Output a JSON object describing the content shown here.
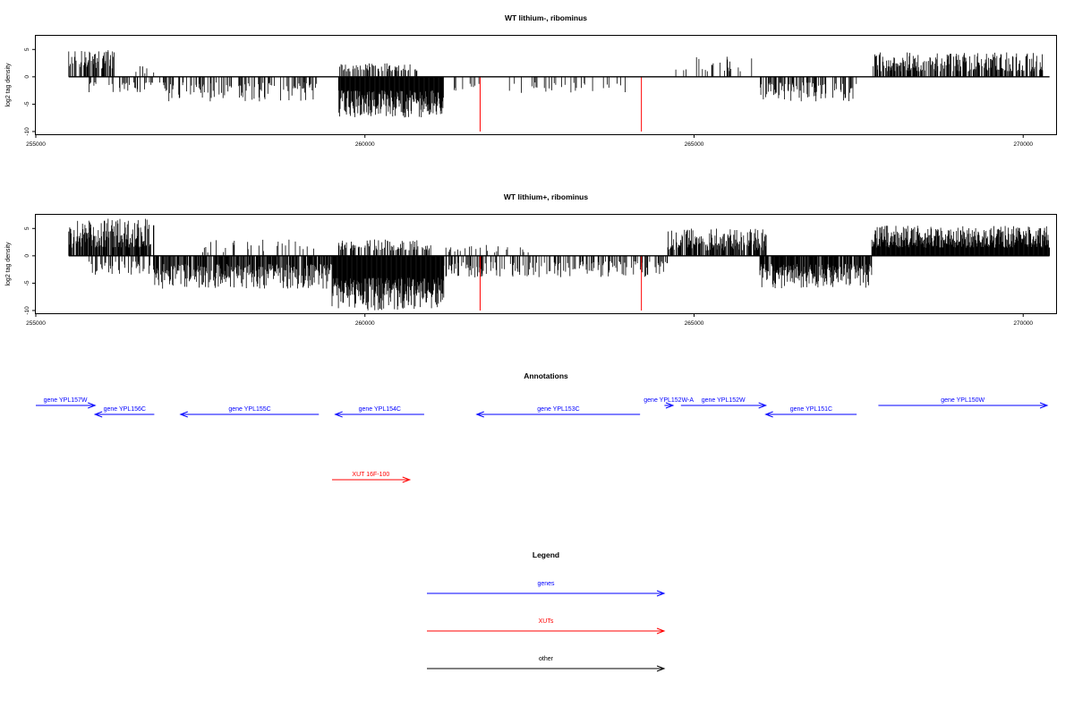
{
  "chart_data": [
    {
      "type": "bar",
      "title": "WT lithium-, ribominus",
      "ylabel": "log2 tag density",
      "xlim": [
        255000,
        270500
      ],
      "ylim": [
        -10.5,
        7.5
      ],
      "x_ticks": [
        "255000",
        "260000",
        "265000",
        "270000"
      ],
      "y_ticks": [
        "5",
        "0",
        "-5",
        "-10"
      ],
      "data_start": 255500,
      "data_end": 270400,
      "density_profile": [
        {
          "x_start": 255500,
          "x_end": 256200,
          "strand": "+",
          "max": 5,
          "min": 1.5,
          "density": 0.55
        },
        {
          "x_start": 256200,
          "x_end": 256800,
          "strand": "+",
          "max": 2.5,
          "min": 0.5,
          "density": 0.08
        },
        {
          "x_start": 255800,
          "x_end": 257000,
          "strand": "-",
          "max": 3,
          "min": 1,
          "density": 0.25
        },
        {
          "x_start": 257000,
          "x_end": 259300,
          "strand": "-",
          "max": 4.5,
          "min": 1,
          "density": 0.35
        },
        {
          "x_start": 259600,
          "x_end": 261200,
          "strand": "-",
          "max": 7.5,
          "min": 2.5,
          "density": 1.0
        },
        {
          "x_start": 259600,
          "x_end": 260800,
          "strand": "+",
          "max": 2.5,
          "min": 1,
          "density": 0.35
        },
        {
          "x_start": 261200,
          "x_end": 264000,
          "strand": "-",
          "max": 3,
          "min": 1,
          "density": 0.12
        },
        {
          "x_start": 264700,
          "x_end": 266000,
          "strand": "+",
          "max": 4,
          "min": 1,
          "density": 0.12
        },
        {
          "x_start": 266000,
          "x_end": 267500,
          "strand": "-",
          "max": 4.5,
          "min": 1,
          "density": 0.45
        },
        {
          "x_start": 267700,
          "x_end": 270300,
          "strand": "+",
          "max": 4.5,
          "min": 1,
          "density": 0.6
        }
      ],
      "red_markers": [
        {
          "x": 261750,
          "y": -10
        },
        {
          "x": 264200,
          "y": -10
        }
      ]
    },
    {
      "type": "bar",
      "title": "WT lithium+, ribominus",
      "ylabel": "log2 tag density",
      "xlim": [
        255000,
        270500
      ],
      "ylim": [
        -10.5,
        7.5
      ],
      "x_ticks": [
        "255000",
        "260000",
        "265000",
        "270000"
      ],
      "y_ticks": [
        "5",
        "0",
        "-5",
        "-10"
      ],
      "data_start": 255500,
      "data_end": 270400,
      "density_profile": [
        {
          "x_start": 255500,
          "x_end": 256800,
          "strand": "+",
          "max": 7,
          "min": 1.5,
          "density": 0.8
        },
        {
          "x_start": 255800,
          "x_end": 256800,
          "strand": "-",
          "max": 3.5,
          "min": 1,
          "density": 0.35
        },
        {
          "x_start": 256800,
          "x_end": 259500,
          "strand": "-",
          "max": 6,
          "min": 1.5,
          "density": 0.75
        },
        {
          "x_start": 257500,
          "x_end": 259300,
          "strand": "+",
          "max": 3,
          "min": 0.5,
          "density": 0.1
        },
        {
          "x_start": 259500,
          "x_end": 261200,
          "strand": "-",
          "max": 10,
          "min": 4,
          "density": 1.0
        },
        {
          "x_start": 259600,
          "x_end": 261000,
          "strand": "+",
          "max": 3,
          "min": 1,
          "density": 0.45
        },
        {
          "x_start": 261200,
          "x_end": 264600,
          "strand": "-",
          "max": 4,
          "min": 1,
          "density": 0.35
        },
        {
          "x_start": 261200,
          "x_end": 262500,
          "strand": "+",
          "max": 2,
          "min": 0.5,
          "density": 0.12
        },
        {
          "x_start": 264600,
          "x_end": 266100,
          "strand": "+",
          "max": 5,
          "min": 1,
          "density": 0.7
        },
        {
          "x_start": 266000,
          "x_end": 267700,
          "strand": "-",
          "max": 6,
          "min": 1.5,
          "density": 0.85
        },
        {
          "x_start": 267700,
          "x_end": 270400,
          "strand": "+",
          "max": 5.5,
          "min": 1.5,
          "density": 1.0
        }
      ],
      "red_markers": [
        {
          "x": 261750,
          "y": -10
        },
        {
          "x": 264200,
          "y": -10
        }
      ]
    }
  ],
  "annotations": {
    "title": "Annotations",
    "items": [
      {
        "label": "gene YPL157W",
        "color": "#0000ff",
        "strand": "+",
        "x_start": 255000,
        "x_end": 255900,
        "row": 0
      },
      {
        "label": "gene YPL156C",
        "color": "#0000ff",
        "strand": "-",
        "x_start": 255900,
        "x_end": 256800,
        "row": 1
      },
      {
        "label": "gene YPL155C",
        "color": "#0000ff",
        "strand": "-",
        "x_start": 257200,
        "x_end": 259300,
        "row": 1
      },
      {
        "label": "gene YPL154C",
        "color": "#0000ff",
        "strand": "-",
        "x_start": 259550,
        "x_end": 260900,
        "row": 1
      },
      {
        "label": "gene YPL153C",
        "color": "#0000ff",
        "strand": "-",
        "x_start": 261700,
        "x_end": 264180,
        "row": 1
      },
      {
        "label": "gene YPL152W-A",
        "color": "#0000ff",
        "strand": "+",
        "x_start": 264550,
        "x_end": 264680,
        "row": 0
      },
      {
        "label": "gene YPL152W",
        "color": "#0000ff",
        "strand": "+",
        "x_start": 264800,
        "x_end": 266090,
        "row": 0
      },
      {
        "label": "gene YPL151C",
        "color": "#0000ff",
        "strand": "-",
        "x_start": 266090,
        "x_end": 267470,
        "row": 1
      },
      {
        "label": "gene YPL150W",
        "color": "#0000ff",
        "strand": "+",
        "x_start": 267800,
        "x_end": 271000,
        "row": 0
      },
      {
        "label": "XUT 16F-100",
        "color": "#ff0000",
        "strand": "+",
        "x_start": 259500,
        "x_end": 260680,
        "row": 2
      }
    ]
  },
  "legend": {
    "title": "Legend",
    "items": [
      {
        "label": "genes",
        "color": "#0000ff"
      },
      {
        "label": "XUTs",
        "color": "#ff0000"
      },
      {
        "label": "other",
        "color": "#000000"
      }
    ]
  }
}
